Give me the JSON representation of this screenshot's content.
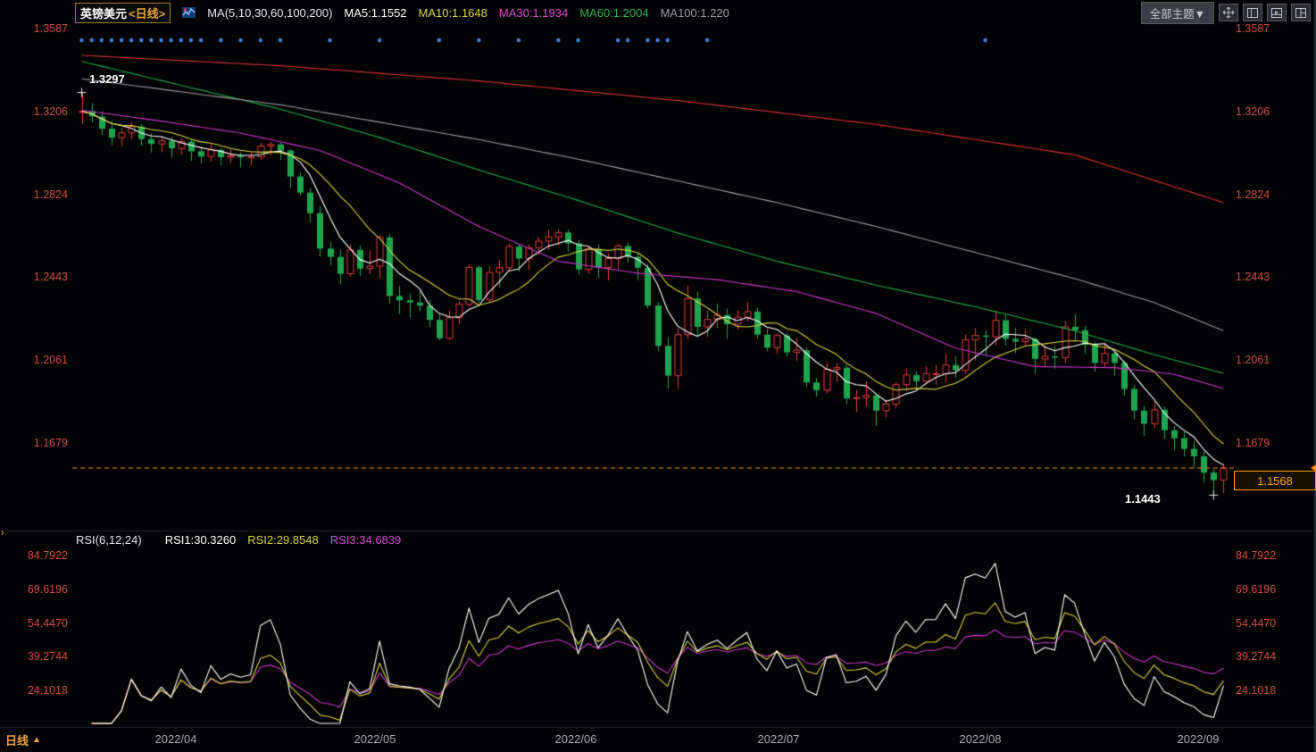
{
  "header": {
    "symbol": "英镑美元",
    "period_tag": "<日线>",
    "ma_group_label": "MA(5,10,30,60,100,200)",
    "ma_values": [
      {
        "label": "MA5:1.1552",
        "color": "#ffffff"
      },
      {
        "label": "MA10:1.1648",
        "color": "#d6d43a"
      },
      {
        "label": "MA30:1.1934",
        "color": "#d44bd4"
      },
      {
        "label": "MA60:1.2004",
        "color": "#2fae4e"
      },
      {
        "label": "MA100:1.220",
        "color": "#9a9aa0"
      }
    ],
    "theme_button": "全部主题▼"
  },
  "rsi_header": {
    "group_label": "RSI(6,12,24)",
    "values": [
      {
        "label": "RSI1:30.3260",
        "color": "#ffffff"
      },
      {
        "label": "RSI2:29.8548",
        "color": "#d6d43a"
      },
      {
        "label": "RSI3:34.6839",
        "color": "#d44bd4"
      }
    ]
  },
  "price_axis": {
    "ticks": [
      "1.3587",
      "1.3206",
      "1.2824",
      "1.2443",
      "1.2061",
      "1.1679"
    ],
    "color": "#d14b42"
  },
  "rsi_axis": {
    "ticks": [
      "84.7922",
      "69.6196",
      "54.4470",
      "39.2744",
      "24.1018"
    ],
    "color": "#d14b42"
  },
  "x_axis": {
    "period_label": "日线",
    "arrow": "▲",
    "labels": [
      "2022/04",
      "2022/05",
      "2022/06",
      "2022/07",
      "2022/08",
      "2022/09"
    ]
  },
  "annotations": {
    "high_label": "1.3297",
    "low_label": "1.1443",
    "last_price": "1.1568"
  },
  "chart_data": {
    "type": "candlestick",
    "title": "英镑美元 GBP/USD 日线 (daily) with MA overlays and RSI(6,12,24) subpanel",
    "x_axis_labels": [
      "2022/04",
      "2022/05",
      "2022/06",
      "2022/07",
      "2022/08",
      "2022/09"
    ],
    "y_ticks_main": [
      1.3587,
      1.3206,
      1.2824,
      1.2443,
      1.2061,
      1.1679
    ],
    "y_ticks_rsi": [
      84.7922,
      69.6196,
      54.447,
      39.2744,
      24.1018
    ],
    "last_price": 1.1568,
    "last_price_line_color": "#ff8a00",
    "up_color": "#e23b3b",
    "down_color": "#1fa44e",
    "high_marker": {
      "index": 0,
      "price": 1.3297
    },
    "low_marker": {
      "index": 114,
      "price": 1.1443
    },
    "event_dots": {
      "color": "#3d86e8",
      "y_value_hint": "news markers near top of panel",
      "indices": [
        0,
        1,
        2,
        3,
        4,
        5,
        6,
        7,
        8,
        9,
        10,
        11,
        12,
        14,
        16,
        18,
        20,
        25,
        30,
        36,
        40,
        44,
        48,
        50,
        54,
        55,
        57,
        58,
        59,
        63,
        91
      ]
    },
    "ma_overlays": [
      {
        "name": "MA5",
        "period": 5,
        "color": "#ffffff"
      },
      {
        "name": "MA10",
        "period": 10,
        "color": "#d6d43a"
      },
      {
        "name": "MA30",
        "color": "#cc33cc",
        "anchors": [
          [
            0,
            1.3215
          ],
          [
            8,
            1.3165
          ],
          [
            16,
            1.311
          ],
          [
            24,
            1.303
          ],
          [
            32,
            1.288
          ],
          [
            40,
            1.268
          ],
          [
            48,
            1.252
          ],
          [
            56,
            1.2465
          ],
          [
            64,
            1.2435
          ],
          [
            72,
            1.238
          ],
          [
            80,
            1.228
          ],
          [
            88,
            1.212
          ],
          [
            96,
            1.2035
          ],
          [
            104,
            1.203
          ],
          [
            110,
            1.2
          ],
          [
            115,
            1.1934
          ]
        ]
      },
      {
        "name": "MA60",
        "color": "#22a947",
        "anchors": [
          [
            0,
            1.344
          ],
          [
            10,
            1.333
          ],
          [
            20,
            1.322
          ],
          [
            30,
            1.309
          ],
          [
            40,
            1.294
          ],
          [
            50,
            1.28
          ],
          [
            60,
            1.265
          ],
          [
            70,
            1.252
          ],
          [
            80,
            1.241
          ],
          [
            90,
            1.231
          ],
          [
            100,
            1.22
          ],
          [
            108,
            1.209
          ],
          [
            115,
            1.2004
          ]
        ]
      },
      {
        "name": "MA100",
        "color": "#9a9aa0",
        "anchors": [
          [
            0,
            1.336
          ],
          [
            10,
            1.33
          ],
          [
            20,
            1.324
          ],
          [
            30,
            1.316
          ],
          [
            40,
            1.308
          ],
          [
            50,
            1.299
          ],
          [
            60,
            1.289
          ],
          [
            70,
            1.279
          ],
          [
            80,
            1.268
          ],
          [
            90,
            1.256
          ],
          [
            100,
            1.244
          ],
          [
            108,
            1.233
          ],
          [
            115,
            1.22
          ]
        ]
      },
      {
        "name": "MA200",
        "color": "#e03030",
        "anchors": [
          [
            0,
            1.3468
          ],
          [
            20,
            1.342
          ],
          [
            40,
            1.335
          ],
          [
            60,
            1.326
          ],
          [
            80,
            1.315
          ],
          [
            100,
            1.301
          ],
          [
            115,
            1.279
          ]
        ]
      }
    ],
    "rsi": {
      "periods": [
        6,
        12,
        24
      ],
      "colors": [
        "#ffffff",
        "#d6d43a",
        "#cc33cc"
      ]
    },
    "candles": [
      [
        1.3205,
        1.3297,
        1.3152,
        1.3211
      ],
      [
        1.3211,
        1.3248,
        1.316,
        1.3186
      ],
      [
        1.3186,
        1.321,
        1.3102,
        1.313
      ],
      [
        1.313,
        1.3168,
        1.3055,
        1.3089
      ],
      [
        1.3089,
        1.3136,
        1.305,
        1.3111
      ],
      [
        1.3111,
        1.3162,
        1.3082,
        1.314
      ],
      [
        1.314,
        1.3151,
        1.3052,
        1.3082
      ],
      [
        1.3082,
        1.311,
        1.3021,
        1.306
      ],
      [
        1.306,
        1.3098,
        1.3022,
        1.3075
      ],
      [
        1.3075,
        1.309,
        1.2998,
        1.3039
      ],
      [
        1.3039,
        1.3085,
        1.301,
        1.3071
      ],
      [
        1.3071,
        1.3082,
        1.2982,
        1.3026
      ],
      [
        1.3026,
        1.3048,
        1.297,
        1.3002
      ],
      [
        1.3002,
        1.306,
        1.2981,
        1.3033
      ],
      [
        1.3033,
        1.3041,
        1.2962,
        1.2999
      ],
      [
        1.2999,
        1.3036,
        1.2973,
        1.3005
      ],
      [
        1.3005,
        1.3021,
        1.2952,
        1.2998
      ],
      [
        1.2998,
        1.3026,
        1.2962,
        1.3
      ],
      [
        1.3,
        1.3064,
        1.2986,
        1.305
      ],
      [
        1.305,
        1.3071,
        1.3008,
        1.3058
      ],
      [
        1.3058,
        1.3068,
        1.2986,
        1.303
      ],
      [
        1.303,
        1.3035,
        1.2858,
        1.291
      ],
      [
        1.291,
        1.2928,
        1.2822,
        1.2836
      ],
      [
        1.2836,
        1.2858,
        1.2698,
        1.2741
      ],
      [
        1.2741,
        1.2772,
        1.2542,
        1.2578
      ],
      [
        1.2578,
        1.2608,
        1.25,
        1.254
      ],
      [
        1.254,
        1.2572,
        1.2412,
        1.2462
      ],
      [
        1.2462,
        1.2598,
        1.245,
        1.2572
      ],
      [
        1.2572,
        1.2592,
        1.2452,
        1.2486
      ],
      [
        1.2486,
        1.2568,
        1.2462,
        1.2497
      ],
      [
        1.2497,
        1.2638,
        1.244,
        1.263
      ],
      [
        1.263,
        1.2645,
        1.2326,
        1.236
      ],
      [
        1.236,
        1.2406,
        1.2276,
        1.234
      ],
      [
        1.234,
        1.2372,
        1.2262,
        1.233
      ],
      [
        1.233,
        1.238,
        1.229,
        1.2315
      ],
      [
        1.2315,
        1.2342,
        1.2216,
        1.225
      ],
      [
        1.225,
        1.2276,
        1.2156,
        1.2165
      ],
      [
        1.2165,
        1.2292,
        1.216,
        1.226
      ],
      [
        1.226,
        1.2338,
        1.223,
        1.2322
      ],
      [
        1.2322,
        1.2502,
        1.2312,
        1.2492
      ],
      [
        1.2492,
        1.25,
        1.233,
        1.2342
      ],
      [
        1.2342,
        1.2499,
        1.2332,
        1.2468
      ],
      [
        1.2468,
        1.2525,
        1.2402,
        1.249
      ],
      [
        1.249,
        1.2602,
        1.2472,
        1.2588
      ],
      [
        1.2588,
        1.2598,
        1.2472,
        1.2532
      ],
      [
        1.2532,
        1.2598,
        1.2482,
        1.2582
      ],
      [
        1.2582,
        1.2632,
        1.2552,
        1.2612
      ],
      [
        1.2612,
        1.2666,
        1.2572,
        1.2632
      ],
      [
        1.2632,
        1.2667,
        1.2592,
        1.2652
      ],
      [
        1.2652,
        1.2665,
        1.2562,
        1.2602
      ],
      [
        1.2602,
        1.2618,
        1.2458,
        1.2482
      ],
      [
        1.2482,
        1.2589,
        1.2462,
        1.2576
      ],
      [
        1.2576,
        1.2598,
        1.2442,
        1.2492
      ],
      [
        1.2492,
        1.2556,
        1.2432,
        1.2532
      ],
      [
        1.2532,
        1.2601,
        1.2482,
        1.259
      ],
      [
        1.259,
        1.2605,
        1.2512,
        1.254
      ],
      [
        1.254,
        1.2562,
        1.2432,
        1.249
      ],
      [
        1.249,
        1.2505,
        1.2302,
        1.2316
      ],
      [
        1.2316,
        1.2332,
        1.2106,
        1.213
      ],
      [
        1.213,
        1.217,
        1.1934,
        1.1993
      ],
      [
        1.1993,
        1.2215,
        1.1932,
        1.2182
      ],
      [
        1.2182,
        1.2406,
        1.2162,
        1.2348
      ],
      [
        1.2348,
        1.238,
        1.2172,
        1.2218
      ],
      [
        1.2218,
        1.2292,
        1.2172,
        1.2252
      ],
      [
        1.2252,
        1.2325,
        1.2212,
        1.2272
      ],
      [
        1.2272,
        1.2302,
        1.2162,
        1.223
      ],
      [
        1.223,
        1.2292,
        1.2206,
        1.2262
      ],
      [
        1.2262,
        1.2332,
        1.2242,
        1.2288
      ],
      [
        1.2288,
        1.2306,
        1.2162,
        1.2182
      ],
      [
        1.2182,
        1.221,
        1.2104,
        1.2122
      ],
      [
        1.2122,
        1.2186,
        1.2092,
        1.2178
      ],
      [
        1.2178,
        1.219,
        1.2082,
        1.21
      ],
      [
        1.21,
        1.2166,
        1.2062,
        1.211
      ],
      [
        1.211,
        1.2124,
        1.1942,
        1.1962
      ],
      [
        1.1962,
        1.1982,
        1.1896,
        1.1926
      ],
      [
        1.1926,
        1.2056,
        1.1912,
        1.2022
      ],
      [
        1.2022,
        1.2052,
        1.1966,
        1.203
      ],
      [
        1.203,
        1.2042,
        1.1862,
        1.1888
      ],
      [
        1.1888,
        1.1926,
        1.1826,
        1.1892
      ],
      [
        1.1892,
        1.1968,
        1.1852,
        1.1902
      ],
      [
        1.1902,
        1.1912,
        1.1761,
        1.1832
      ],
      [
        1.1832,
        1.1882,
        1.1802,
        1.1862
      ],
      [
        1.1862,
        1.1962,
        1.1842,
        1.1952
      ],
      [
        1.1952,
        1.2026,
        1.1922,
        1.1996
      ],
      [
        1.1996,
        1.2012,
        1.1922,
        1.1968
      ],
      [
        1.1968,
        1.2036,
        1.1952,
        1.2002
      ],
      [
        1.2002,
        1.2042,
        1.1952,
        1.2002
      ],
      [
        1.2002,
        1.2092,
        1.1962,
        1.2042
      ],
      [
        1.2042,
        1.2082,
        1.1982,
        1.2018
      ],
      [
        1.2018,
        1.2182,
        1.2002,
        1.2158
      ],
      [
        1.2158,
        1.2212,
        1.2062,
        1.2178
      ],
      [
        1.2178,
        1.2202,
        1.2082,
        1.2172
      ],
      [
        1.2172,
        1.2293,
        1.2132,
        1.2248
      ],
      [
        1.2248,
        1.2272,
        1.2132,
        1.2162
      ],
      [
        1.2162,
        1.2212,
        1.2096,
        1.215
      ],
      [
        1.215,
        1.2206,
        1.2132,
        1.2162
      ],
      [
        1.2162,
        1.2168,
        1.2002,
        1.207
      ],
      [
        1.207,
        1.2132,
        1.2032,
        1.2082
      ],
      [
        1.2082,
        1.2128,
        1.2026,
        1.2076
      ],
      [
        1.2076,
        1.2246,
        1.2052,
        1.2218
      ],
      [
        1.2218,
        1.2276,
        1.2152,
        1.2202
      ],
      [
        1.2202,
        1.2222,
        1.2092,
        1.2136
      ],
      [
        1.2136,
        1.2148,
        1.2012,
        1.2052
      ],
      [
        1.2052,
        1.2142,
        1.2032,
        1.2096
      ],
      [
        1.2096,
        1.2106,
        1.1992,
        1.2052
      ],
      [
        1.2052,
        1.2062,
        1.1902,
        1.1932
      ],
      [
        1.1932,
        1.1952,
        1.1792,
        1.1832
      ],
      [
        1.1832,
        1.1852,
        1.1716,
        1.1772
      ],
      [
        1.1772,
        1.1876,
        1.1752,
        1.1836
      ],
      [
        1.1836,
        1.1852,
        1.1702,
        1.1742
      ],
      [
        1.1742,
        1.1762,
        1.1649,
        1.1705
      ],
      [
        1.1705,
        1.1736,
        1.1622,
        1.1656
      ],
      [
        1.1656,
        1.1692,
        1.1568,
        1.1622
      ],
      [
        1.1622,
        1.1642,
        1.1502,
        1.1546
      ],
      [
        1.1546,
        1.1566,
        1.1443,
        1.1512
      ],
      [
        1.1512,
        1.1588,
        1.1452,
        1.1568
      ]
    ]
  }
}
